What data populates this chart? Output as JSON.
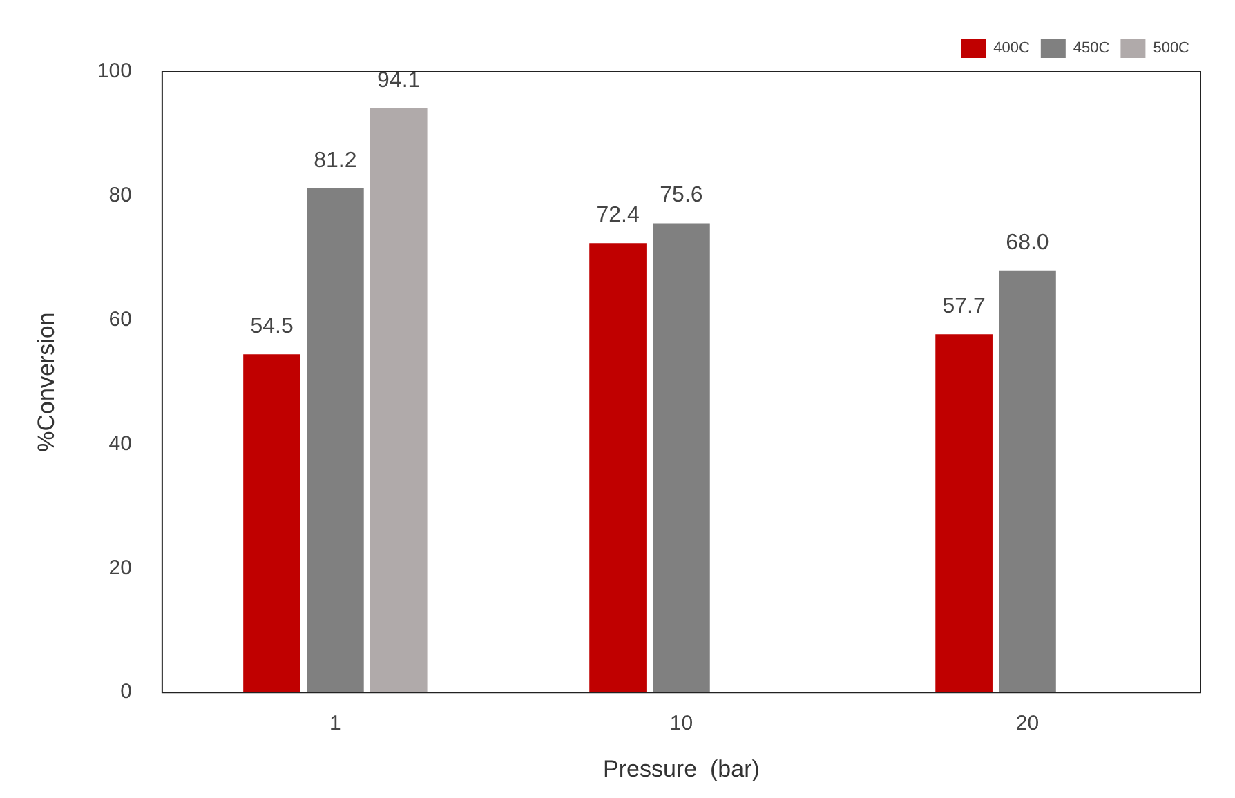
{
  "chart_data": {
    "type": "bar",
    "xlabel": "Pressure  (bar)",
    "ylabel": "%Conversion",
    "categories": [
      "1",
      "10",
      "20"
    ],
    "series": [
      {
        "name": "400C",
        "color": "#c00000",
        "values": [
          54.5,
          72.4,
          57.7
        ],
        "value_labels": [
          "54.5",
          "72.4",
          "57.7"
        ]
      },
      {
        "name": "450C",
        "color": "#808080",
        "values": [
          81.2,
          75.6,
          68.0
        ],
        "value_labels": [
          "81.2",
          "75.6",
          "68.0"
        ]
      },
      {
        "name": "500C",
        "color": "#b0aaaa",
        "values": [
          94.1,
          null,
          null
        ],
        "value_labels": [
          "94.1",
          null,
          null
        ]
      }
    ],
    "ylim": [
      0,
      100
    ],
    "yticks": [
      0,
      20,
      40,
      60,
      80,
      100
    ],
    "grid": false,
    "legend": "top right"
  }
}
